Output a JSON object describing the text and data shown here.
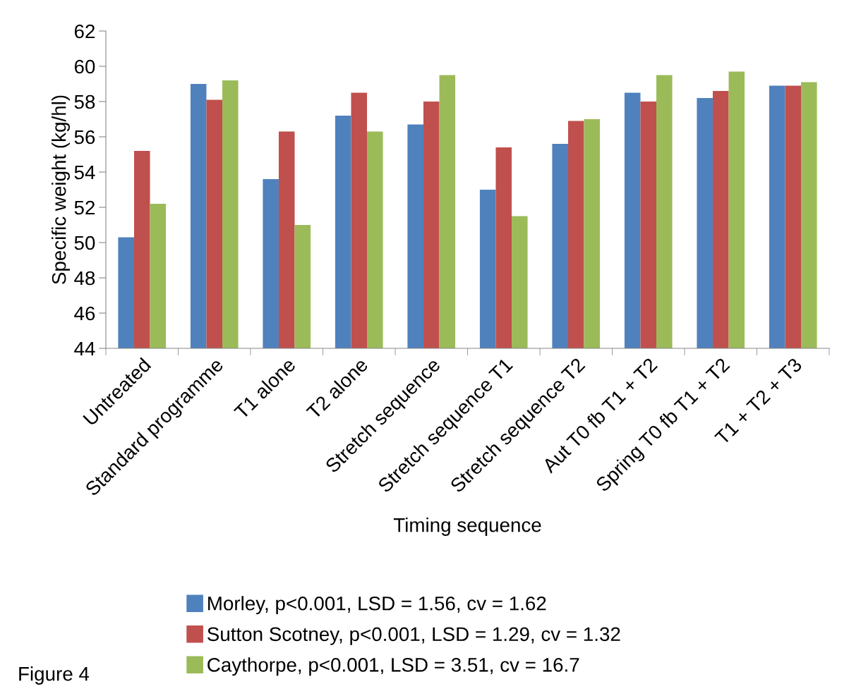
{
  "chart_data": {
    "type": "bar",
    "xlabel": "Timing sequence",
    "ylabel": "Specific weight (kg/hl)",
    "categories": [
      "Untreated",
      "Standard programme",
      "T1 alone",
      "T2 alone",
      "Stretch sequence",
      "Stretch sequence T1",
      "Stretch sequence T2",
      "Aut T0 fb T1 + T2",
      "Spring T0 fb T1 + T2",
      "T1 + T2 + T3"
    ],
    "series": [
      {
        "name": "Morley, p<0.001, LSD = 1.56, cv = 1.62",
        "color": "#4f81bd",
        "values": [
          50.3,
          59.0,
          53.6,
          57.2,
          56.7,
          53.0,
          55.6,
          58.5,
          58.2,
          58.9
        ]
      },
      {
        "name": "Sutton Scotney, p<0.001, LSD = 1.29, cv = 1.32",
        "color": "#c0504d",
        "values": [
          55.2,
          58.1,
          56.3,
          58.5,
          58.0,
          55.4,
          56.9,
          58.0,
          58.6,
          58.9
        ]
      },
      {
        "name": "Caythorpe, p<0.001, LSD = 3.51, cv = 16.7",
        "color": "#9bbb59",
        "values": [
          52.2,
          59.2,
          51.0,
          56.3,
          59.5,
          51.5,
          57.0,
          59.5,
          59.7,
          59.1
        ]
      }
    ],
    "ylim": [
      44,
      62
    ],
    "yticks": [
      44,
      46,
      48,
      50,
      52,
      54,
      56,
      58,
      60,
      62
    ],
    "grid": false,
    "legend": "bottom",
    "annotations": [
      "Figure 4"
    ]
  }
}
